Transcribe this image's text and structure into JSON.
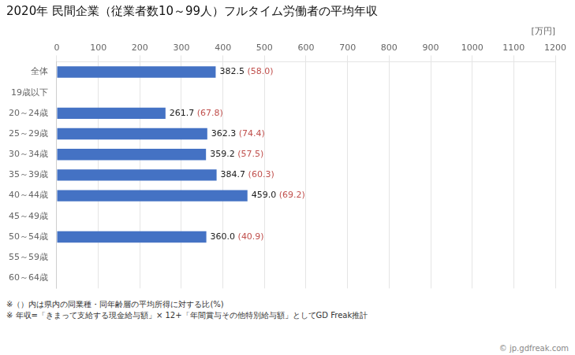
{
  "chart_data": {
    "type": "bar",
    "orientation": "horizontal",
    "title": "2020年 民間企業（従業者数10～99人）フルタイム労働者の平均年収",
    "xlabel": "[万円]",
    "categories": [
      "全体",
      "19歳以下",
      "20～24歳",
      "25～29歳",
      "30～34歳",
      "35～39歳",
      "40～44歳",
      "45～49歳",
      "50～54歳",
      "55～59歳",
      "60～64歳"
    ],
    "values": [
      382.5,
      null,
      261.7,
      362.3,
      359.2,
      384.7,
      459.0,
      null,
      360.0,
      null,
      null
    ],
    "value_labels": [
      "382.5",
      null,
      "261.7",
      "362.3",
      "359.2",
      "384.7",
      "459.0",
      null,
      "360.0",
      null,
      null
    ],
    "ratios": [
      58.0,
      null,
      67.8,
      74.4,
      57.5,
      60.3,
      69.2,
      null,
      40.9,
      null,
      null
    ],
    "ratio_labels": [
      "58.0",
      null,
      "67.8",
      "74.4",
      "57.5",
      "60.3",
      "69.2",
      null,
      "40.9",
      null,
      null
    ],
    "color": "#4472c4",
    "value_color": "#1a1a1a",
    "ratio_color": "#c0504d",
    "data_labels": true,
    "xlim": [
      0,
      1200
    ],
    "xticks": [
      0,
      100,
      200,
      300,
      400,
      500,
      600,
      700,
      800,
      900,
      1000,
      1100,
      1200
    ],
    "grid": true,
    "notes": [
      "※（）内は県内の同業種・同年齢層の平均所得に対する比(%)",
      "※ 年収=「きまって支給する現金給与額」× 12+「年間賞与その他特別給与額」としてGD Freak推計"
    ],
    "watermark": "© jp.gdfreak.com"
  }
}
